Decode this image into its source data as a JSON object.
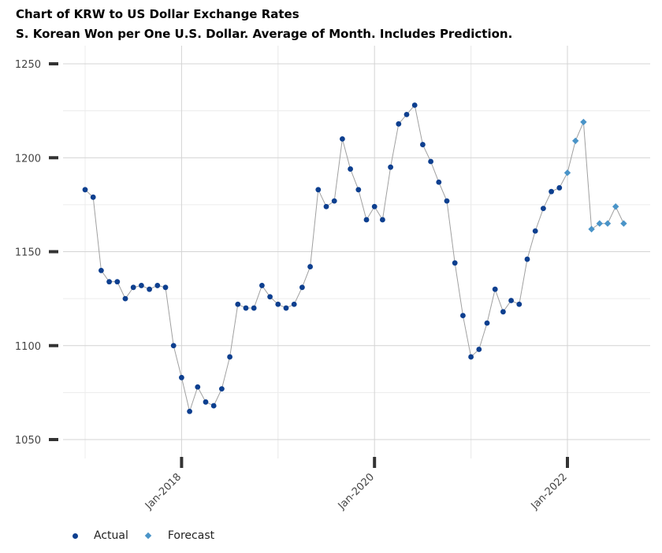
{
  "chart_data": {
    "type": "line",
    "title": "Chart of KRW to US Dollar Exchange Rates",
    "subtitle": "S. Korean Won per One U.S. Dollar.  Average of Month.  Includes Prediction.",
    "ylim": [
      1040,
      1255
    ],
    "yticks": [
      1050,
      1100,
      1150,
      1200,
      1250
    ],
    "xticks": [
      {
        "label": "Jan-2018",
        "index": 12
      },
      {
        "label": "Jan-2020",
        "index": 36
      },
      {
        "label": "Jan-2022",
        "index": 60
      }
    ],
    "colors": {
      "actual": "#0d3f8f",
      "forecast": "#4a94c8",
      "line": "#a0a0a0"
    },
    "series": [
      {
        "name": "Actual",
        "start_index": 0,
        "values": [
          1183,
          1179,
          1140,
          1134,
          1134,
          1125,
          1131,
          1132,
          1130,
          1132,
          1131,
          1100,
          1083,
          1065,
          1078,
          1070,
          1068,
          1077,
          1094,
          1122,
          1120,
          1120,
          1132,
          1126,
          1122,
          1120,
          1122,
          1131,
          1142,
          1183,
          1174,
          1177,
          1210,
          1194,
          1183,
          1167,
          1174,
          1167,
          1195,
          1218,
          1223,
          1228,
          1207,
          1198,
          1187,
          1177,
          1144,
          1116,
          1094,
          1098,
          1112,
          1130,
          1118,
          1124,
          1122,
          1146,
          1161,
          1173,
          1182,
          1184
        ]
      },
      {
        "name": "Forecast",
        "start_index": 60,
        "values": [
          1192,
          1209,
          1219,
          1162,
          1165,
          1165,
          1174,
          1165
        ]
      }
    ],
    "legend_position": "bottom-left",
    "grid": true
  }
}
